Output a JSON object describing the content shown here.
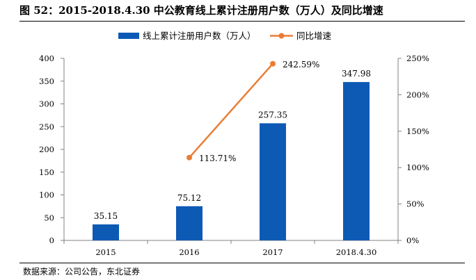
{
  "title": "图  52：2015-2018.4.30 中公教育线上累计注册用户数（万人）及同比增速",
  "source": "数据来源：公司公告，东北证券",
  "colors": {
    "bar": "#0d5ab5",
    "line": "#ea7d35",
    "axis": "#808080"
  },
  "chart_data": {
    "type": "bar",
    "categories": [
      "2015",
      "2016",
      "2017",
      "2018.4.30"
    ],
    "series": [
      {
        "name": "线上累计注册用户数（万人）",
        "type": "bar",
        "axis": "left",
        "values": [
          35.15,
          75.12,
          257.35,
          347.98
        ],
        "labels": [
          "35.15",
          "75.12",
          "257.35",
          "347.98"
        ]
      },
      {
        "name": "同比增速",
        "type": "line",
        "axis": "right",
        "values": [
          null,
          113.71,
          242.59,
          null
        ],
        "labels": [
          "",
          "113.71%",
          "242.59%",
          ""
        ]
      }
    ],
    "y_left": {
      "min": 0,
      "max": 400,
      "ticks": [
        "0",
        "50",
        "100",
        "150",
        "200",
        "250",
        "300",
        "350",
        "400"
      ]
    },
    "y_right": {
      "min": 0,
      "max": 250,
      "ticks": [
        "0%",
        "50%",
        "100%",
        "150%",
        "200%",
        "250%"
      ]
    },
    "legend": "top-center",
    "grid": false
  }
}
